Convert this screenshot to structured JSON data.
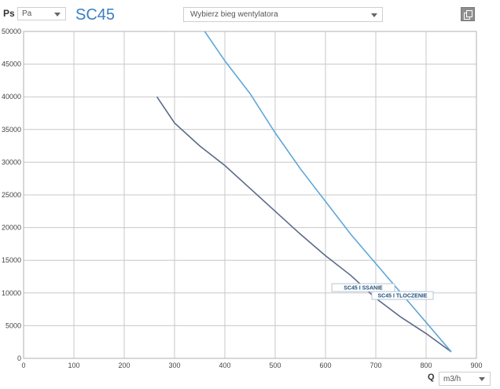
{
  "header": {
    "y_axis_symbol": "Ps",
    "y_unit_select": "Pa",
    "title": "SC45",
    "fan_speed_select": "Wybierz bieg wentylatora"
  },
  "footer": {
    "x_axis_symbol": "Q",
    "x_unit_select": "m3/h"
  },
  "chart_data": {
    "type": "line",
    "xlim": [
      0,
      900
    ],
    "ylim": [
      0,
      50000
    ],
    "x_ticks": [
      0,
      100,
      200,
      300,
      400,
      500,
      600,
      700,
      800,
      900
    ],
    "y_ticks": [
      0,
      5000,
      10000,
      15000,
      20000,
      25000,
      30000,
      35000,
      40000,
      45000,
      50000
    ],
    "grid": true,
    "series": [
      {
        "name": "SC45 I SSANIE",
        "color": "#5a6a8a",
        "x": [
          265,
          300,
          350,
          400,
          450,
          500,
          550,
          600,
          650,
          700,
          750,
          800,
          850
        ],
        "y": [
          40000,
          36000,
          32500,
          29500,
          26000,
          22500,
          19000,
          15700,
          12700,
          9200,
          6300,
          3800,
          1000
        ]
      },
      {
        "name": "SC45 I TŁOCZENIE",
        "color": "#5fa8d8",
        "x": [
          360,
          400,
          450,
          500,
          550,
          600,
          650,
          700,
          750,
          800,
          850
        ],
        "y": [
          50000,
          45500,
          40500,
          34500,
          29000,
          24000,
          19000,
          14500,
          10000,
          5500,
          1000
        ]
      }
    ],
    "legend": [
      {
        "label": "SC45 I SSANIE"
      },
      {
        "label": "SC45 I TLOCZENIE"
      }
    ]
  }
}
